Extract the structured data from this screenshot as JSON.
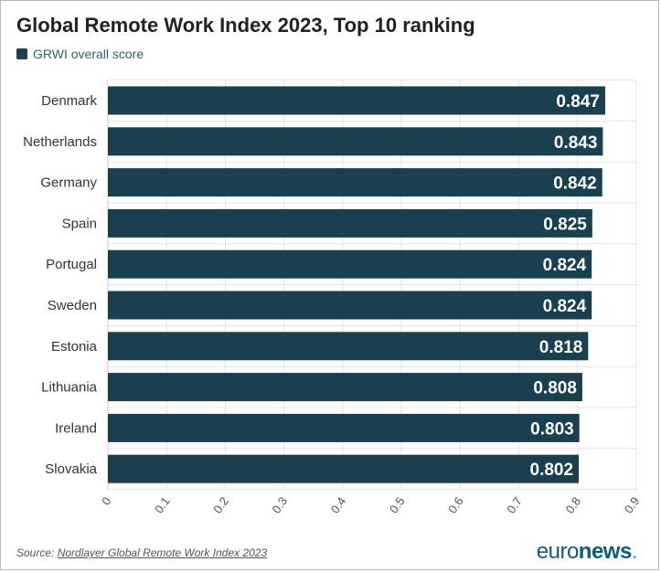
{
  "title": "Global Remote Work Index 2023, Top 10 ranking",
  "legend": {
    "label": "GRWI overall score",
    "color": "#1a3f4f"
  },
  "source": {
    "prefix": "Source: ",
    "link_text": "Nordlayer Global Remote Work Index 2023"
  },
  "brand": {
    "main": "euro",
    "bold": "news",
    "dot": "."
  },
  "chart_data": {
    "type": "bar",
    "orientation": "horizontal",
    "title": "Global Remote Work Index 2023, Top 10 ranking",
    "categories": [
      "Denmark",
      "Netherlands",
      "Germany",
      "Spain",
      "Portugal",
      "Sweden",
      "Estonia",
      "Lithuania",
      "Ireland",
      "Slovakia"
    ],
    "series": [
      {
        "name": "GRWI overall score",
        "values": [
          0.847,
          0.843,
          0.842,
          0.825,
          0.824,
          0.824,
          0.818,
          0.808,
          0.803,
          0.802
        ],
        "labels": [
          "0.847",
          "0.843",
          "0.842",
          "0.825",
          "0.824",
          "0.824",
          "0.818",
          "0.808",
          "0.803",
          "0.802"
        ]
      }
    ],
    "xlim": [
      0,
      0.9
    ],
    "xticks": [
      "0",
      "0.1",
      "0.2",
      "0.3",
      "0.4",
      "0.5",
      "0.6",
      "0.7",
      "0.8",
      "0.9"
    ],
    "grid": true,
    "legend": "top-left",
    "bar_color": "#1a3f4f",
    "grid_color": "#e3e3e3"
  }
}
